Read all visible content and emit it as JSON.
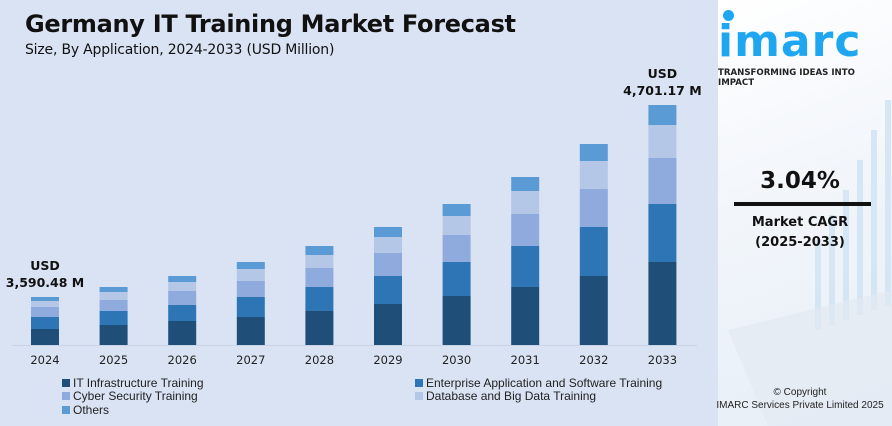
{
  "header": {
    "title": "Germany IT Training Market Forecast",
    "subtitle": "Size, By Application, 2024-2033 (USD Million)"
  },
  "chart_data": {
    "type": "bar",
    "stacked": true,
    "title": "Germany IT Training Market Forecast",
    "subtitle": "Size, By Application, 2024-2033 (USD Million)",
    "xlabel": "",
    "ylabel": "",
    "y_axis_visible": false,
    "grid": false,
    "value_units": "relative visual index (no y-axis shown)",
    "categories": [
      "2024",
      "2025",
      "2026",
      "2027",
      "2028",
      "2029",
      "2030",
      "2031",
      "2032",
      "2033"
    ],
    "series": [
      {
        "name": "IT Infrastructure Training",
        "color": "#1f4e79",
        "values": [
          16,
          20,
          24,
          28,
          34,
          41,
          49,
          58,
          69,
          83
        ]
      },
      {
        "name": "Enterprise Application and Software Training",
        "color": "#2e75b6",
        "values": [
          12,
          14,
          16,
          20,
          24,
          28,
          34,
          41,
          49,
          58
        ]
      },
      {
        "name": "Cyber Security Training",
        "color": "#8faadc",
        "values": [
          10,
          11,
          14,
          16,
          19,
          23,
          27,
          32,
          38,
          46
        ]
      },
      {
        "name": "Database and Big Data Training",
        "color": "#b4c7e7",
        "values": [
          6,
          8,
          9,
          12,
          13,
          16,
          19,
          23,
          28,
          33
        ]
      },
      {
        "name": "Others",
        "color": "#5b9bd5",
        "values": [
          4,
          5,
          6,
          7,
          9,
          10,
          12,
          14,
          17,
          20
        ]
      }
    ],
    "annotations": [
      {
        "category": "2024",
        "line1": "USD",
        "line2": "3,590.48 M"
      },
      {
        "category": "2033",
        "line1": "USD",
        "line2": "4,701.17 M"
      }
    ],
    "legend": {
      "position": "bottom",
      "columns": 2
    }
  },
  "sidebar": {
    "logo_text": "imarc",
    "tagline": "TRANSFORMING IDEAS INTO IMPACT",
    "cagr_value": "3.04%",
    "cagr_label": "Market CAGR",
    "cagr_period": "(2025-2033)",
    "copyright_line1": "© Copyright",
    "copyright_line2": "IMARC Services Private Limited 2025",
    "brand_color": "#1ea7f0"
  }
}
